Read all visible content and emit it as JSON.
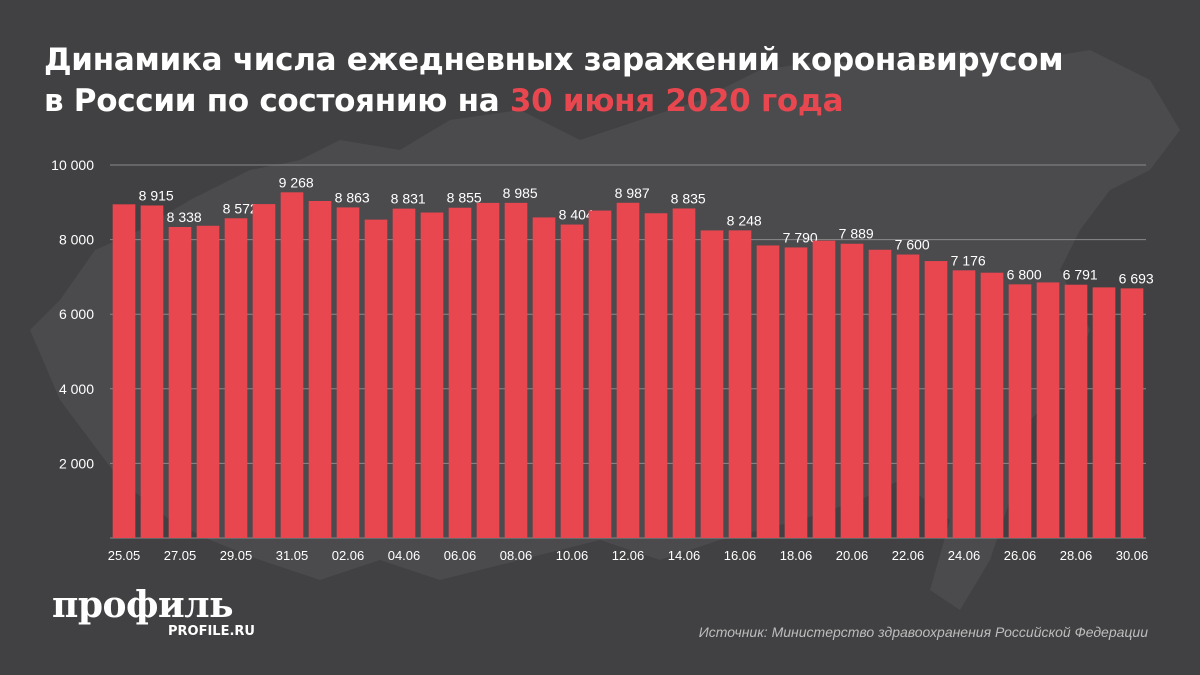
{
  "header": {
    "title_part1": "Динамика числа ежедневных заражений коронавирусом",
    "title_part2": "в России по состоянию на",
    "title_highlight": "30 июня 2020 года"
  },
  "brand": {
    "logo_text": "профиль",
    "logo_url": "PROFILE.RU"
  },
  "footer": {
    "source_prefix": "Источник:",
    "source_name": "Министерство здравоохранения Российской Федерации"
  },
  "colors": {
    "background": "#414042",
    "bar": "#e8474f",
    "highlight": "#e8474f",
    "text": "#ffffff",
    "grid": "#8a8a8a"
  },
  "chart_data": {
    "type": "bar",
    "title": "Динамика числа ежедневных заражений коронавирусом в России по состоянию на 30 июня 2020 года",
    "xlabel": "",
    "ylabel": "",
    "ylim": [
      0,
      10000
    ],
    "yticks": [
      2000,
      4000,
      6000,
      8000,
      10000
    ],
    "ytick_labels": [
      "2 000",
      "4 000",
      "6 000",
      "8 000",
      "10 000"
    ],
    "grid": true,
    "categories": [
      "25.05",
      "26.05",
      "27.05",
      "28.05",
      "29.05",
      "30.05",
      "31.05",
      "01.06",
      "02.06",
      "03.06",
      "04.06",
      "05.06",
      "06.06",
      "07.06",
      "08.06",
      "09.06",
      "10.06",
      "11.06",
      "12.06",
      "13.06",
      "14.06",
      "15.06",
      "16.06",
      "17.06",
      "18.06",
      "19.06",
      "20.06",
      "21.06",
      "22.06",
      "23.06",
      "24.06",
      "25.06",
      "26.06",
      "27.06",
      "28.06",
      "29.06",
      "30.06"
    ],
    "xtick_labels": [
      "25.05",
      "",
      "27.05",
      "",
      "29.05",
      "",
      "31.05",
      "",
      "02.06",
      "",
      "04.06",
      "",
      "06.06",
      "",
      "08.06",
      "",
      "10.06",
      "",
      "12.06",
      "",
      "14.06",
      "",
      "16.06",
      "",
      "18.06",
      "",
      "20.06",
      "",
      "22.06",
      "",
      "24.06",
      "",
      "26.06",
      "",
      "28.06",
      "",
      "30.06"
    ],
    "values": [
      8946,
      8915,
      8338,
      8371,
      8572,
      8952,
      9268,
      9035,
      8863,
      8536,
      8831,
      8726,
      8855,
      8984,
      8985,
      8595,
      8404,
      8779,
      8987,
      8706,
      8835,
      8246,
      8248,
      7843,
      7790,
      7972,
      7889,
      7728,
      7600,
      7425,
      7176,
      7113,
      6800,
      6852,
      6791,
      6719,
      6693
    ],
    "data_labels": [
      "",
      "8 915",
      "8 338",
      "",
      "8 572",
      "",
      "9 268",
      "",
      "8 863",
      "",
      "8 831",
      "",
      "8 855",
      "",
      "8 985",
      "",
      "8 404",
      "",
      "8 987",
      "",
      "8 835",
      "",
      "8 248",
      "",
      "7 790",
      "",
      "7 889",
      "",
      "7 600",
      "",
      "7 176",
      "",
      "6 800",
      "",
      "6 791",
      "",
      "6 693"
    ]
  }
}
